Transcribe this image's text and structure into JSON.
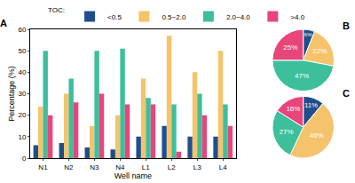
{
  "chart_data": [
    {
      "type": "bar",
      "title": "A",
      "x_label": "Well name",
      "y_label": "Percentage (%)",
      "legend_title": "TOC:",
      "legend": "top",
      "categories": [
        "N1",
        "N2",
        "N3",
        "N4",
        "L1",
        "L2",
        "L3",
        "L4"
      ],
      "series": [
        {
          "name": "<0.5",
          "color": "#1f4e8c",
          "values": [
            6,
            7,
            5,
            4,
            10,
            15,
            10,
            10
          ]
        },
        {
          "name": "0.5~2.0",
          "color": "#f5c36b",
          "values": [
            24,
            30,
            15,
            20,
            37,
            57,
            40,
            50
          ]
        },
        {
          "name": "2.0~4.0",
          "color": "#3dbf9c",
          "values": [
            50,
            37,
            50,
            51,
            28,
            25,
            30,
            25
          ]
        },
        {
          "name": ">4.0",
          "color": "#e8467a",
          "values": [
            20,
            26,
            30,
            25,
            25,
            3,
            20,
            15
          ]
        }
      ],
      "ylim": [
        0,
        60
      ],
      "yticks": [
        0,
        10,
        20,
        30,
        40,
        50,
        60
      ],
      "grid": false
    },
    {
      "type": "pie",
      "title": "B",
      "categories": [
        "<0.5",
        "0.5~2.0",
        "2.0~4.0",
        ">4.0"
      ],
      "values": [
        6,
        22,
        47,
        25
      ],
      "value_labels": [
        "6%",
        "22%",
        "47%",
        "25%"
      ],
      "colors": [
        "#1f4e8c",
        "#f5c36b",
        "#3dbf9c",
        "#e8467a"
      ],
      "data_labels": true
    },
    {
      "type": "pie",
      "title": "C",
      "categories": [
        "<0.5",
        "0.5~2.0",
        "2.0~4.0",
        ">4.0"
      ],
      "values": [
        11,
        46,
        27,
        16
      ],
      "value_labels": [
        "11%",
        "46%",
        "27%",
        "16%"
      ],
      "colors": [
        "#1f4e8c",
        "#f5c36b",
        "#3dbf9c",
        "#e8467a"
      ],
      "data_labels": true
    }
  ]
}
